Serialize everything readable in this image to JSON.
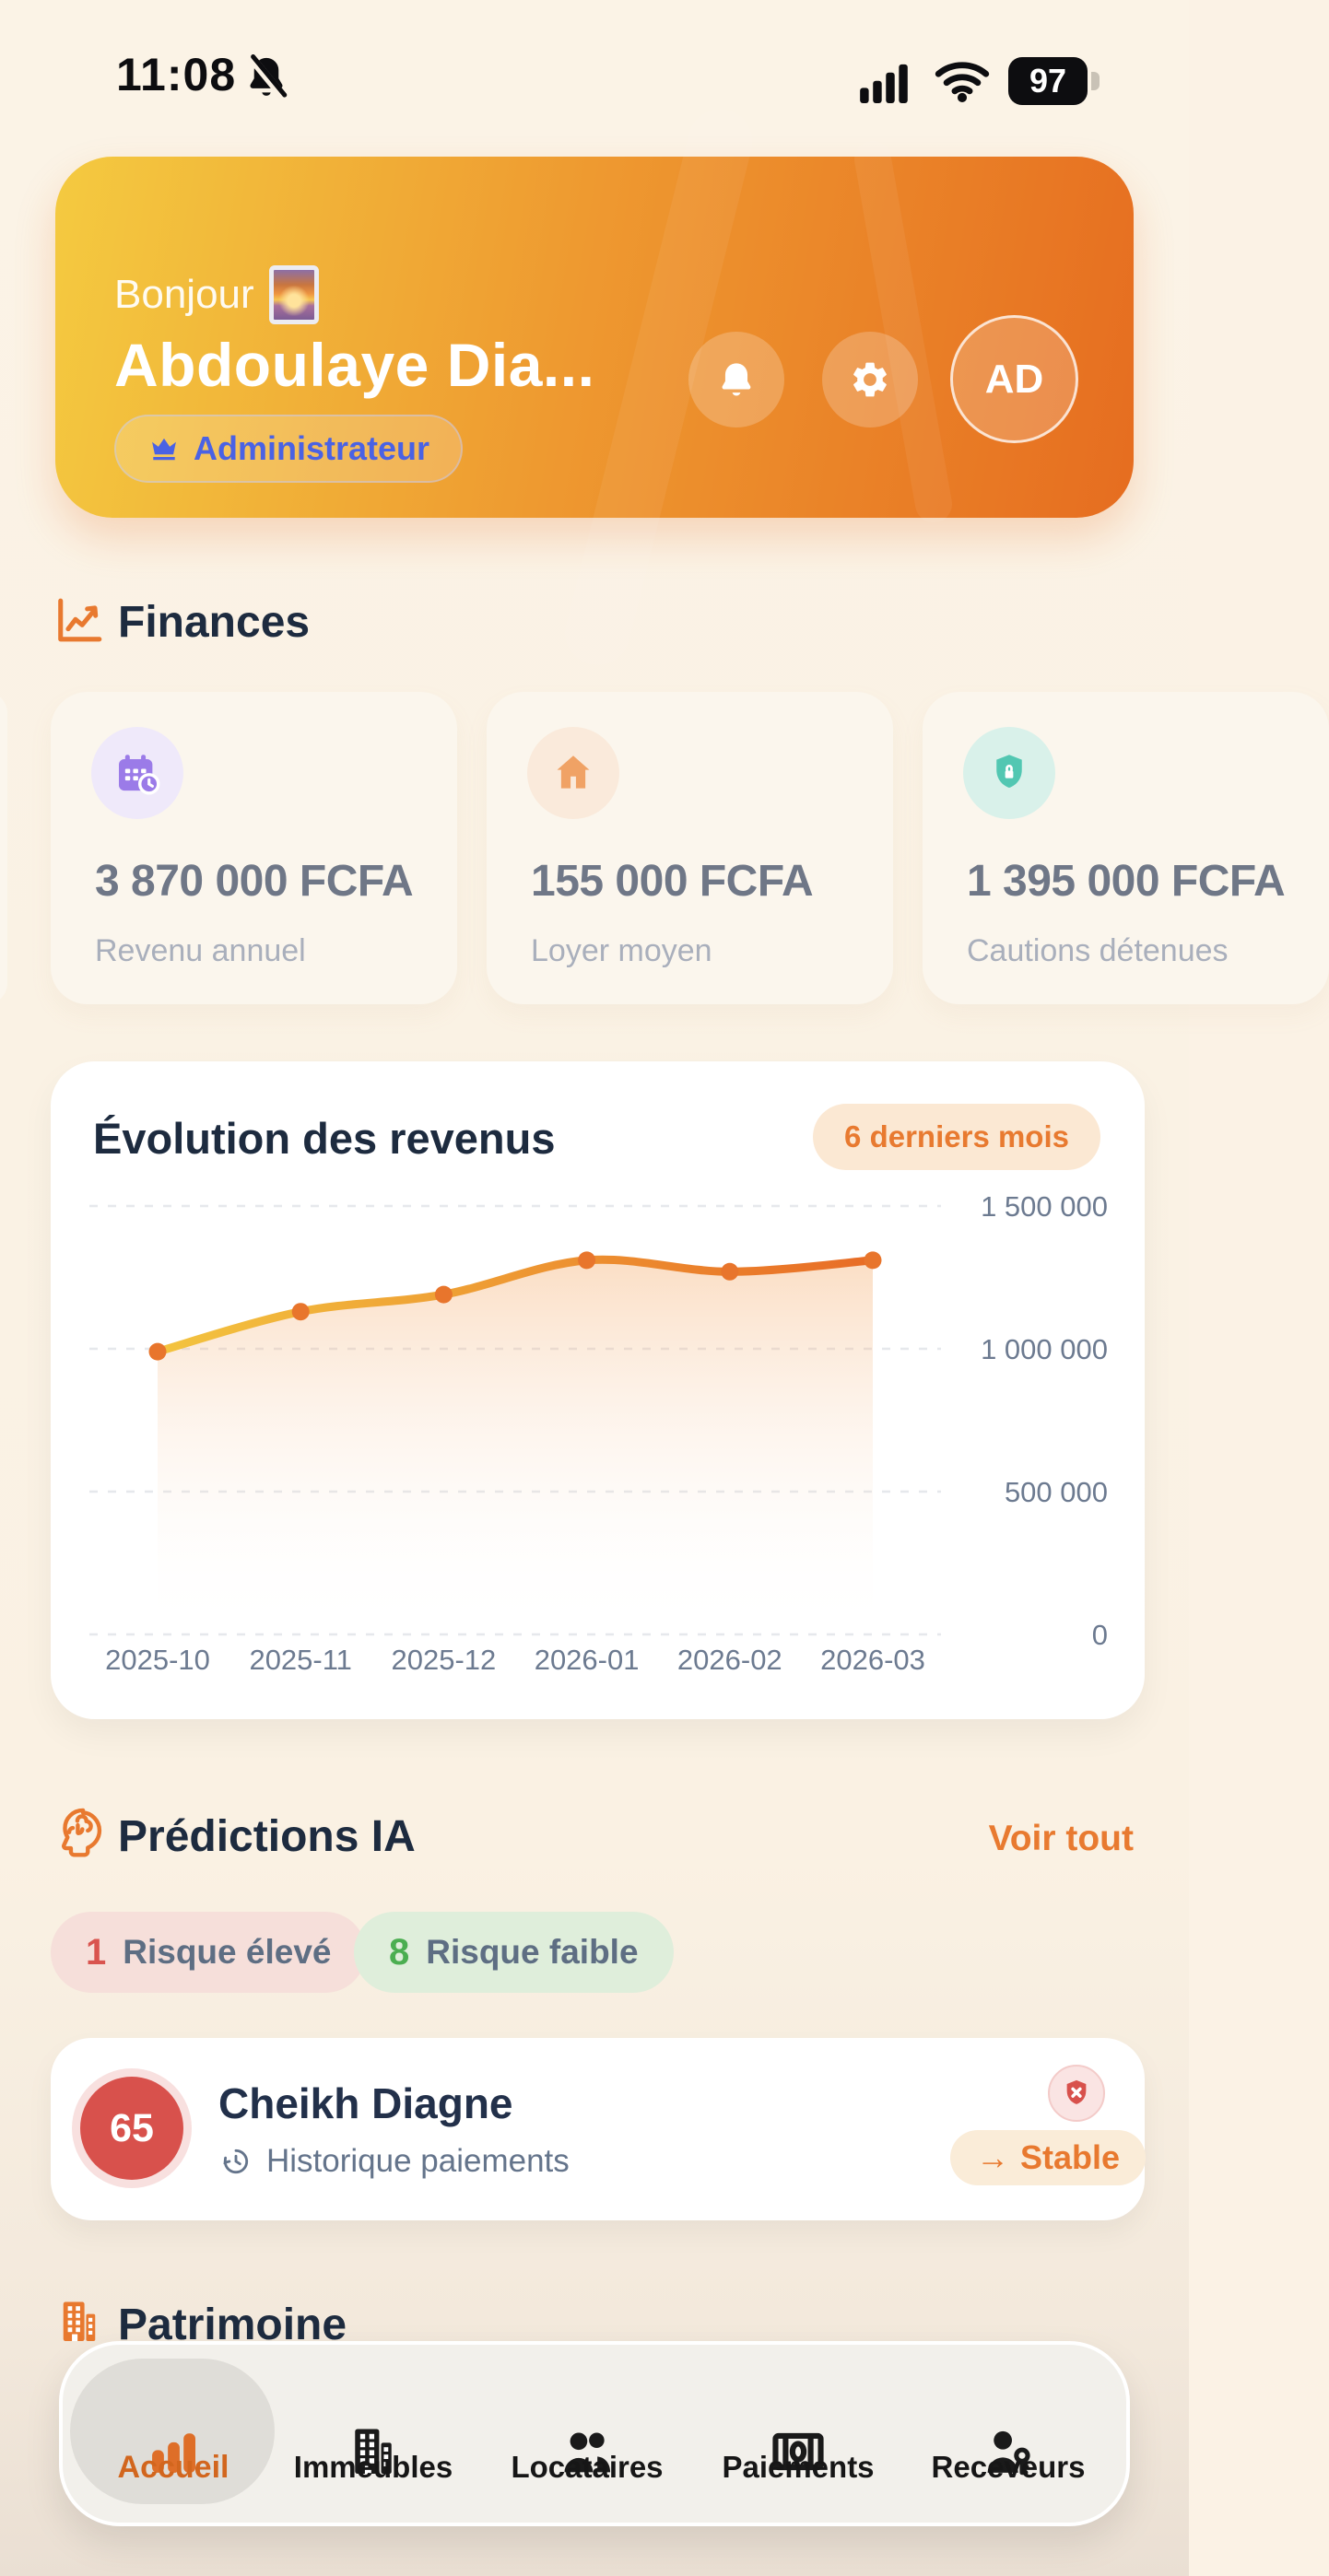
{
  "status_bar": {
    "time": "11:08",
    "battery": "97",
    "muted_bell_icon": "bell-muted",
    "signal_icon": "signal",
    "wifi_icon": "wifi"
  },
  "header": {
    "greeting": "Bonjour",
    "greeting_emoji": "sunrise-picture",
    "name": "Abdoulaye Dia...",
    "role_badge": "Administrateur",
    "avatar_initials": "AD",
    "gradient": [
      "#F4CA40",
      "#E66D20"
    ],
    "badge_text_color": "#4A62E4"
  },
  "finances": {
    "title": "Finances",
    "title_icon": "trend-chart",
    "cards": [
      {
        "icon": "calendar-clock",
        "icon_color": "#9B7BE8",
        "icon_bg": "#EFE9FA",
        "value": "3 870 000 FCFA",
        "label": "Revenu annuel"
      },
      {
        "icon": "house",
        "icon_color": "#F0A265",
        "icon_bg": "#FAEADB",
        "value": "155 000 FCFA",
        "label": "Loyer moyen"
      },
      {
        "icon": "shield-lock",
        "icon_color": "#52C7B2",
        "icon_bg": "#D9F1EA",
        "value": "1 395 000 FCFA",
        "label": "Cautions détenues"
      }
    ]
  },
  "chart_card": {
    "title": "Évolution des revenus",
    "period_badge": "6 derniers mois"
  },
  "chart_data": {
    "type": "area",
    "title": "Évolution des revenus",
    "x": [
      "2025-10",
      "2025-11",
      "2025-12",
      "2026-01",
      "2026-02",
      "2026-03"
    ],
    "values": [
      990000,
      1130000,
      1190000,
      1310000,
      1270000,
      1310000
    ],
    "ylim": [
      0,
      1500000
    ],
    "yticks": [
      0,
      500000,
      1000000,
      1500000
    ],
    "ytick_labels": [
      "0",
      "500 000",
      "1 000 000",
      "1 500 000"
    ],
    "grid": "dashed-horizontal",
    "legend": "none",
    "line_colors": [
      "#F3C43F",
      "#E86C26"
    ],
    "point_color": "#E8752C"
  },
  "predictions": {
    "title": "Prédictions IA",
    "title_icon": "brain",
    "see_all": "Voir tout",
    "high_risk_count": "1",
    "high_risk_label": "Risque élevé",
    "low_risk_count": "8",
    "low_risk_label": "Risque faible",
    "card": {
      "score": "65",
      "name": "Cheikh Diagne",
      "subtitle_icon": "clock-history",
      "subtitle": "Historique paiements",
      "alert_icon": "shield-x",
      "trend_arrow": "→",
      "trend": "Stable"
    }
  },
  "patrimoine": {
    "title": "Patrimoine",
    "title_icon": "building"
  },
  "nav": {
    "tabs": [
      {
        "label": "Accueil",
        "icon": "bar-chart",
        "active": true
      },
      {
        "label": "Immeubles",
        "icon": "building",
        "active": false
      },
      {
        "label": "Locataires",
        "icon": "people",
        "active": false
      },
      {
        "label": "Paiements",
        "icon": "banknote",
        "active": false
      },
      {
        "label": "Receveurs",
        "icon": "person-key",
        "active": false
      }
    ]
  },
  "colors": {
    "page_bg": "#FBF2E5",
    "accent_orange": "#E8792F",
    "navy_text": "#1D2B3F",
    "risk_red": "#D9544F",
    "risk_green": "#4BAE51"
  }
}
